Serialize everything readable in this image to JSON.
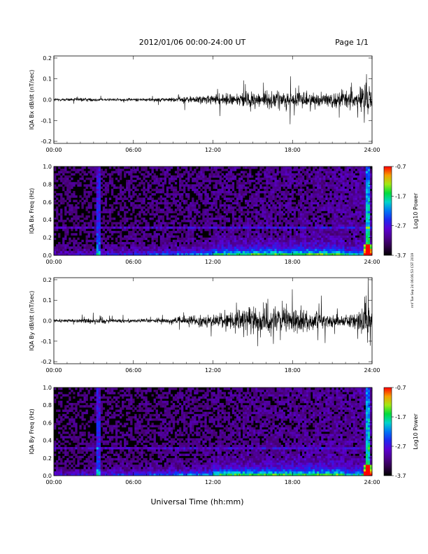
{
  "header": {
    "title": "2012/01/06  00:00-24:00 UT",
    "page": "Page 1/1"
  },
  "x_axis_label": "Universal Time (hh:mm)",
  "side_stamp": "rmf Tue Sep 24 06:06:53 CST 2019",
  "chart_data": [
    {
      "type": "line",
      "ylabel": "IQA Bx dB/dt (nT/sec)",
      "xlim": [
        0,
        24
      ],
      "ylim": [
        -0.21,
        0.21
      ],
      "x_ticks": [
        "00:00",
        "06:00",
        "12:00",
        "18:00",
        "24:00"
      ],
      "y_ticks": [
        "-0.2",
        "-0.1",
        "0.0",
        "0.1",
        "0.2"
      ],
      "y_tick_values": [
        -0.2,
        -0.1,
        0.0,
        0.1,
        0.2
      ],
      "series": [
        {
          "x": [
            0,
            2,
            4,
            6,
            8,
            9,
            10,
            11,
            12,
            13,
            14,
            15,
            16,
            17,
            18,
            19,
            20,
            21,
            22,
            23,
            23.5,
            24
          ],
          "amplitude": [
            0.012,
            0.015,
            0.012,
            0.012,
            0.015,
            0.02,
            0.03,
            0.035,
            0.04,
            0.05,
            0.06,
            0.07,
            0.07,
            0.075,
            0.07,
            0.065,
            0.06,
            0.06,
            0.08,
            0.09,
            0.2,
            0.08
          ]
        }
      ],
      "grid": false
    },
    {
      "type": "heatmap",
      "ylabel": "IQA Bx Freq (Hz)",
      "xlim": [
        0,
        24
      ],
      "ylim": [
        0,
        1.0
      ],
      "x_ticks": [
        "00:00",
        "06:00",
        "12:00",
        "18:00",
        "24:00"
      ],
      "y_ticks": [
        "0.0",
        "0.2",
        "0.4",
        "0.6",
        "0.8",
        "1.0"
      ],
      "y_tick_values": [
        0,
        0.2,
        0.4,
        0.6,
        0.8,
        1.0
      ],
      "colorbar": {
        "label": "Log10 Power",
        "ticks": [
          "-0.7",
          "-1.7",
          "-2.7",
          "-3.7"
        ],
        "range": [
          -3.7,
          -0.7
        ]
      },
      "features": {
        "vertical_streak_hours": [
          3.4,
          23.7
        ],
        "horizontal_line_hz": 0.31
      }
    },
    {
      "type": "line",
      "ylabel": "IQA By dB/dt (nT/sec)",
      "xlim": [
        0,
        24
      ],
      "ylim": [
        -0.21,
        0.21
      ],
      "x_ticks": [
        "00:00",
        "06:00",
        "12:00",
        "18:00",
        "24:00"
      ],
      "y_ticks": [
        "-0.2",
        "-0.1",
        "0.0",
        "0.1",
        "0.2"
      ],
      "y_tick_values": [
        -0.2,
        -0.1,
        0.0,
        0.1,
        0.2
      ],
      "series": [
        {
          "x": [
            0,
            2,
            3.5,
            4,
            6,
            8,
            9,
            10,
            11,
            12,
            13,
            14,
            15,
            16,
            17,
            18,
            19,
            20,
            21,
            22,
            23,
            23.5,
            24
          ],
          "amplitude": [
            0.015,
            0.015,
            0.04,
            0.018,
            0.015,
            0.02,
            0.025,
            0.035,
            0.045,
            0.05,
            0.07,
            0.09,
            0.12,
            0.12,
            0.11,
            0.1,
            0.09,
            0.07,
            0.06,
            0.05,
            0.07,
            0.2,
            0.08
          ]
        }
      ],
      "grid": false
    },
    {
      "type": "heatmap",
      "ylabel": "IQA By Freq (Hz)",
      "xlim": [
        0,
        24
      ],
      "ylim": [
        0,
        1.0
      ],
      "x_ticks": [
        "00:00",
        "06:00",
        "12:00",
        "18:00",
        "24:00"
      ],
      "y_ticks": [
        "0.0",
        "0.2",
        "0.4",
        "0.6",
        "0.8",
        "1.0"
      ],
      "y_tick_values": [
        0,
        0.2,
        0.4,
        0.6,
        0.8,
        1.0
      ],
      "colorbar": {
        "label": "Log10 Power",
        "ticks": [
          "-0.7",
          "-1.7",
          "-2.7",
          "-3.7"
        ],
        "range": [
          -3.7,
          -0.7
        ]
      },
      "features": {
        "vertical_streak_hours": [
          3.4,
          23.7
        ],
        "horizontal_line_hz": 0.31
      }
    }
  ]
}
